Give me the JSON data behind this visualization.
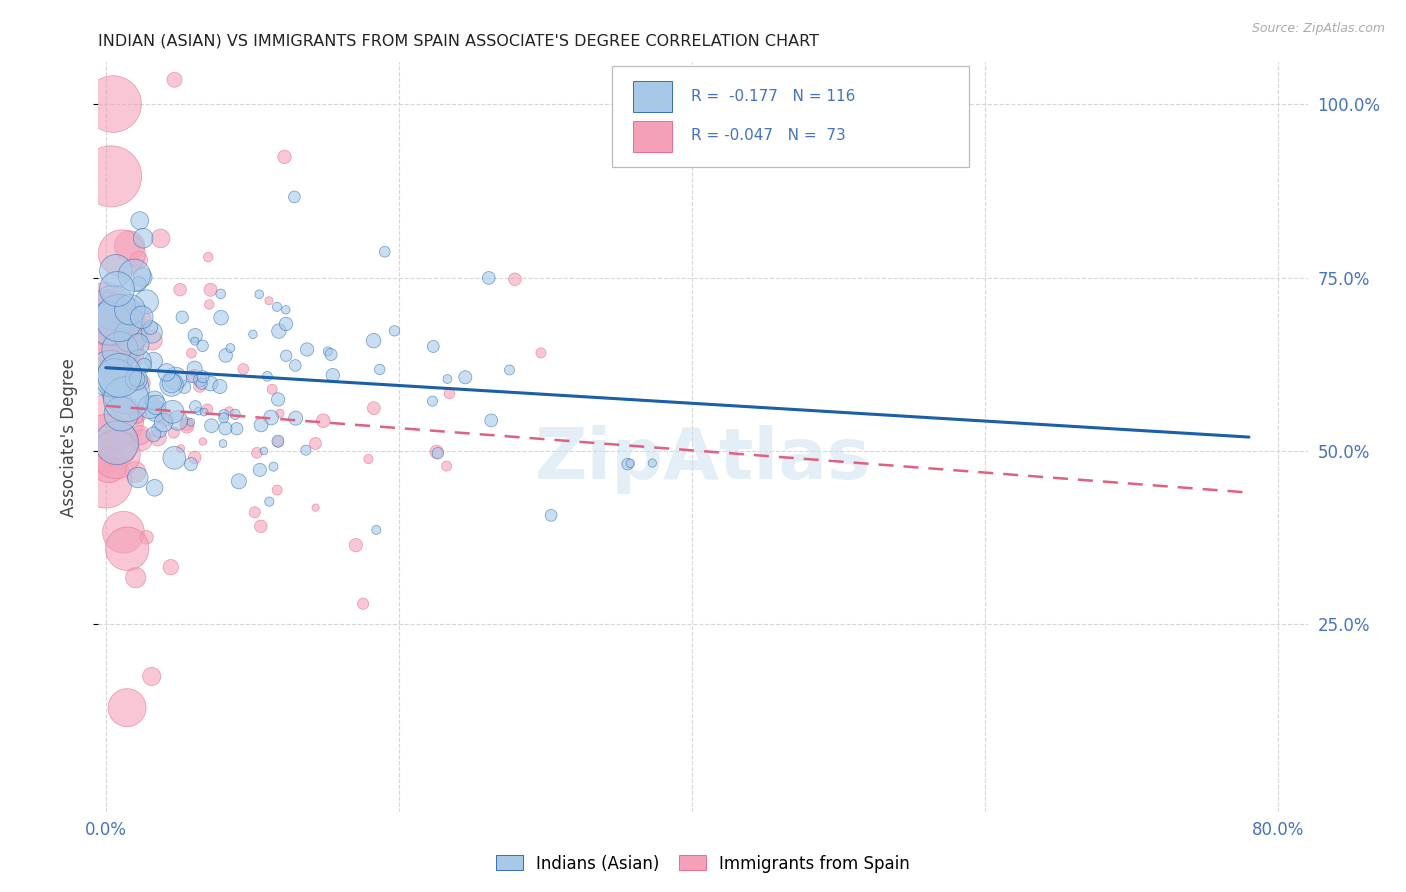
{
  "title": "INDIAN (ASIAN) VS IMMIGRANTS FROM SPAIN ASSOCIATE'S DEGREE CORRELATION CHART",
  "source": "Source: ZipAtlas.com",
  "ylabel": "Associate's Degree",
  "legend_label1": "Indians (Asian)",
  "legend_label2": "Immigrants from Spain",
  "color_indian": "#a8c8e8",
  "color_spain": "#f4a0b8",
  "color_indian_line": "#1a5fa8",
  "color_spain_line": "#e06080",
  "color_axis_blue": "#4472c4",
  "watermark": "ZipAtlas",
  "xmin": 0.0,
  "xmax": 0.8,
  "ymin": 0.0,
  "ymax": 1.0,
  "blue_line": {
    "x0": 0.0,
    "y0": 0.62,
    "x1": 0.78,
    "y1": 0.52
  },
  "pink_line": {
    "x0": 0.0,
    "y0": 0.565,
    "x1": 0.78,
    "y1": 0.44
  }
}
